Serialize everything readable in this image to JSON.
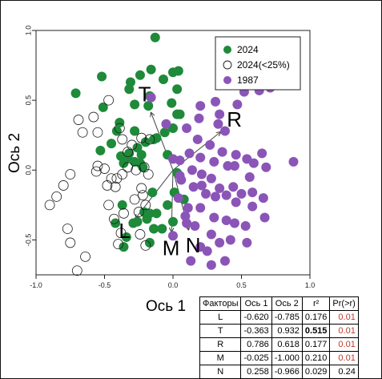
{
  "chart_data": {
    "type": "scatter",
    "xlabel": "Ось 1",
    "ylabel": "Ось 2",
    "xlim": [
      -1.0,
      1.0
    ],
    "ylim": [
      -0.75,
      1.0
    ],
    "xticks": [
      "-1.0",
      "-0.5",
      "0.0",
      "0.5",
      "1.0"
    ],
    "yticks": [
      "1.0",
      "0.5",
      "0.0",
      "-0.5"
    ],
    "grid": false,
    "legend_position": "top-right",
    "series": [
      {
        "name": "2024",
        "color": "#1e8a3a",
        "style": "filled",
        "points": [
          [
            -0.13,
            0.95
          ],
          [
            -0.41,
            0.28
          ],
          [
            -0.51,
            0.45
          ],
          [
            -0.39,
            0.34
          ],
          [
            -0.53,
            0.14
          ],
          [
            -0.45,
            0.19
          ],
          [
            -0.28,
            0.28
          ],
          [
            -0.26,
            0.16
          ],
          [
            -0.2,
            0.2
          ],
          [
            -0.23,
            0.11
          ],
          [
            -0.12,
            0.23
          ],
          [
            -0.06,
            0.27
          ],
          [
            -0.04,
            0.11
          ],
          [
            -0.14,
            0.22
          ],
          [
            0.0,
            0.3
          ],
          [
            0.03,
            0.4
          ],
          [
            -0.01,
            0.48
          ],
          [
            0.03,
            0.58
          ],
          [
            -0.17,
            0.53
          ],
          [
            -0.32,
            0.58
          ],
          [
            -0.28,
            0.47
          ],
          [
            -0.18,
            0.46
          ],
          [
            0.0,
            0.7
          ],
          [
            0.04,
            0.71
          ],
          [
            -0.16,
            0.72
          ],
          [
            -0.07,
            0.65
          ],
          [
            -0.24,
            0.68
          ],
          [
            -0.38,
            0.1
          ],
          [
            -0.36,
            0.05
          ],
          [
            -0.33,
            0.09
          ],
          [
            -0.28,
            0.06
          ],
          [
            -0.24,
            0.05
          ],
          [
            -0.22,
            0.02
          ],
          [
            -0.32,
            0.12
          ],
          [
            -0.37,
            -0.25
          ],
          [
            -0.29,
            -0.38
          ],
          [
            -0.26,
            -0.37
          ],
          [
            -0.19,
            -0.35
          ],
          [
            -0.17,
            -0.31
          ],
          [
            -0.14,
            -0.42
          ],
          [
            -0.08,
            -0.42
          ],
          [
            0.0,
            -0.37
          ],
          [
            -0.12,
            -0.31
          ],
          [
            -0.17,
            -0.52
          ],
          [
            -0.36,
            -0.55
          ],
          [
            -0.21,
            -0.3
          ],
          [
            -0.71,
            0.55
          ],
          [
            -0.52,
            0.67
          ],
          [
            -0.31,
            0.63
          ],
          [
            -0.34,
            -0.48
          ],
          [
            -0.42,
            -0.38
          ],
          [
            0.01,
            -0.16
          ],
          [
            -0.04,
            -0.25
          ],
          [
            0.08,
            -0.21
          ],
          [
            0.03,
            -0.02
          ],
          [
            -0.15,
            -0.16
          ],
          [
            0.05,
            0.4
          ]
        ]
      },
      {
        "name": "2024(<25%)",
        "color": "#1a1a1a",
        "style": "open",
        "points": [
          [
            -0.58,
            0.38
          ],
          [
            -0.47,
            0.5
          ],
          [
            -0.55,
            0.27
          ],
          [
            -0.66,
            0.27
          ],
          [
            -0.69,
            0.36
          ],
          [
            -0.39,
            0.3
          ],
          [
            -0.37,
            0.22
          ],
          [
            -0.33,
            0.13
          ],
          [
            -0.3,
            0.18
          ],
          [
            -0.23,
            0.23
          ],
          [
            -0.17,
            0.22
          ],
          [
            -0.27,
            0.0
          ],
          [
            -0.33,
            0.02
          ],
          [
            -0.37,
            -0.03
          ],
          [
            -0.41,
            -0.06
          ],
          [
            -0.42,
            -0.12
          ],
          [
            -0.45,
            -0.06
          ],
          [
            -0.55,
            0.03
          ],
          [
            -0.5,
            0.01
          ],
          [
            -0.56,
            -0.01
          ],
          [
            -0.75,
            -0.03
          ],
          [
            -0.8,
            -0.11
          ],
          [
            -0.85,
            -0.19
          ],
          [
            -0.9,
            -0.25
          ],
          [
            -0.47,
            -0.25
          ],
          [
            -0.43,
            -0.35
          ],
          [
            -0.36,
            -0.31
          ],
          [
            -0.22,
            -0.18
          ],
          [
            -0.28,
            -0.21
          ],
          [
            -0.25,
            -0.3
          ],
          [
            -0.2,
            -0.25
          ],
          [
            -0.23,
            -0.13
          ],
          [
            -0.21,
            0.02
          ],
          [
            -0.18,
            -0.03
          ],
          [
            -0.77,
            -0.42
          ],
          [
            -0.64,
            -0.62
          ],
          [
            -0.75,
            -0.52
          ],
          [
            -0.2,
            -0.54
          ],
          [
            -0.4,
            -0.53
          ],
          [
            -0.38,
            -0.45
          ],
          [
            -0.24,
            -0.46
          ],
          [
            -0.48,
            -0.11
          ],
          [
            -0.7,
            -0.72
          ]
        ]
      },
      {
        "name": "1987",
        "color": "#8b55b8",
        "style": "filled",
        "points": [
          [
            0.52,
            0.56
          ],
          [
            0.63,
            0.57
          ],
          [
            0.71,
            0.59
          ],
          [
            0.47,
            0.47
          ],
          [
            0.34,
            0.4
          ],
          [
            0.31,
            0.49
          ],
          [
            0.2,
            0.46
          ],
          [
            0.19,
            0.37
          ],
          [
            0.33,
            0.33
          ],
          [
            0.38,
            0.28
          ],
          [
            0.1,
            0.3
          ],
          [
            0.18,
            0.22
          ],
          [
            0.27,
            0.18
          ],
          [
            0.36,
            0.13
          ],
          [
            0.46,
            0.11
          ],
          [
            0.54,
            0.08
          ],
          [
            0.65,
            0.12
          ],
          [
            0.88,
            0.06
          ],
          [
            0.59,
            0.05
          ],
          [
            0.68,
            0.02
          ],
          [
            0.45,
            0.03
          ],
          [
            0.56,
            -0.05
          ],
          [
            0.4,
            0.03
          ],
          [
            0.3,
            0.06
          ],
          [
            0.2,
            0.09
          ],
          [
            0.12,
            0.12
          ],
          [
            0.05,
            0.07
          ],
          [
            0.14,
            0.0
          ],
          [
            0.05,
            -0.04
          ],
          [
            0.21,
            -0.03
          ],
          [
            0.28,
            -0.06
          ],
          [
            0.34,
            -0.13
          ],
          [
            0.44,
            -0.12
          ],
          [
            0.5,
            -0.17
          ],
          [
            0.58,
            -0.16
          ],
          [
            0.66,
            -0.2
          ],
          [
            0.58,
            -0.26
          ],
          [
            0.46,
            -0.23
          ],
          [
            0.39,
            -0.18
          ],
          [
            0.31,
            -0.19
          ],
          [
            0.24,
            -0.17
          ],
          [
            0.2,
            -0.27
          ],
          [
            0.11,
            -0.27
          ],
          [
            0.04,
            -0.2
          ],
          [
            0.3,
            -0.34
          ],
          [
            0.39,
            -0.36
          ],
          [
            0.45,
            -0.38
          ],
          [
            0.53,
            -0.4
          ],
          [
            0.67,
            -0.34
          ],
          [
            0.54,
            -0.52
          ],
          [
            0.42,
            -0.5
          ],
          [
            0.34,
            -0.52
          ],
          [
            0.28,
            -0.46
          ],
          [
            0.16,
            -0.4
          ],
          [
            0.1,
            -0.38
          ],
          [
            0.38,
            -0.65
          ],
          [
            0.28,
            -0.68
          ],
          [
            0.25,
            -0.58
          ],
          [
            0.2,
            -0.55
          ],
          [
            0.13,
            -0.65
          ],
          [
            0.09,
            -0.33
          ],
          [
            0.0,
            -0.47
          ],
          [
            0.15,
            -0.12
          ],
          [
            0.21,
            -0.11
          ],
          [
            -0.16,
            0.52
          ],
          [
            0.0,
            0.08
          ],
          [
            -0.05,
            0.33
          ],
          [
            0.06,
            -0.07
          ]
        ]
      }
    ],
    "vectors": [
      {
        "name": "L",
        "x": -0.62,
        "y": -0.785
      },
      {
        "name": "T",
        "x": -0.363,
        "y": 0.932
      },
      {
        "name": "R",
        "x": 0.786,
        "y": 0.618
      },
      {
        "name": "M",
        "x": -0.025,
        "y": -1.0
      },
      {
        "name": "N",
        "x": 0.258,
        "y": -0.966
      }
    ],
    "table": {
      "headers": [
        "Факторы",
        "Ось 1",
        "Ось 2",
        "r²",
        "Pr(>r)"
      ],
      "rows": [
        [
          "L",
          "-0.620",
          "-0.785",
          "0.176",
          "0.01"
        ],
        [
          "T",
          "-0.363",
          "0.932",
          "0.515",
          "0.01"
        ],
        [
          "R",
          "0.786",
          "0.618",
          "0.177",
          "0.01"
        ],
        [
          "M",
          "-0.025",
          "-1.000",
          "0.210",
          "0.01"
        ],
        [
          "N",
          "0.258",
          "-0.966",
          "0.029",
          "0.24"
        ]
      ]
    }
  }
}
